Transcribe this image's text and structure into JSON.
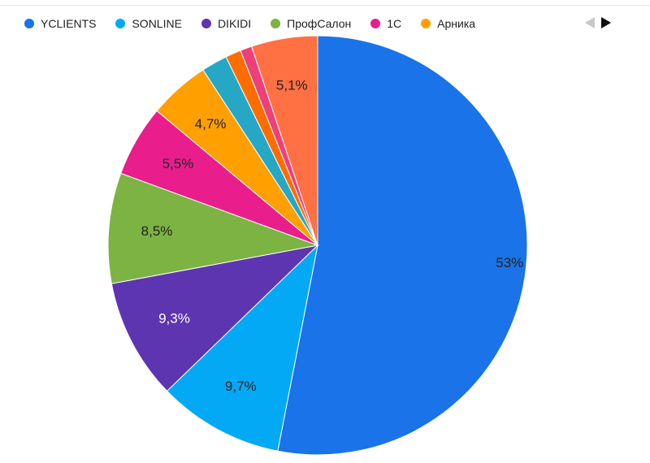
{
  "colors": {
    "YCLIENTS": "#1a73e8",
    "SONLINE": "#03a9f4",
    "DIKIDI": "#5e35b1",
    "ProfSalon": "#7cb342",
    "1C": "#e91e8c",
    "Arnika": "#ffa000",
    "other_teal": "#26a7c6",
    "other_orange": "#ff6d00",
    "other_pink": "#ec407a",
    "other_coral": "#ff7043"
  },
  "legend": {
    "items": [
      {
        "label": "YCLIENTS",
        "color": "#1a73e8"
      },
      {
        "label": "SONLINE",
        "color": "#03a9f4"
      },
      {
        "label": "DIKIDI",
        "color": "#5e35b1"
      },
      {
        "label": "ПрофСалон",
        "color": "#7cb342"
      },
      {
        "label": "1С",
        "color": "#e91e8c"
      },
      {
        "label": "Арника",
        "color": "#ffa000"
      }
    ]
  },
  "pager": {
    "prev_icon": "chevron-left-icon",
    "next_icon": "chevron-right-icon"
  },
  "chart_data": {
    "type": "pie",
    "start": "top",
    "direction": "clockwise",
    "slices": [
      {
        "name": "YCLIENTS",
        "value": 53,
        "label": "53%",
        "color": "#1a73e8",
        "label_color": "dark"
      },
      {
        "name": "SONLINE",
        "value": 9.7,
        "label": "9,7%",
        "color": "#03a9f4",
        "label_color": "dark"
      },
      {
        "name": "DIKIDI",
        "value": 9.3,
        "label": "9,3%",
        "color": "#5e35b1",
        "label_color": "light"
      },
      {
        "name": "ПрофСалон",
        "value": 8.5,
        "label": "8,5%",
        "color": "#7cb342",
        "label_color": "dark"
      },
      {
        "name": "1С",
        "value": 5.5,
        "label": "5,5%",
        "color": "#e91e8c",
        "label_color": "dark"
      },
      {
        "name": "Арника",
        "value": 4.7,
        "label": "4,7%",
        "color": "#ffa000",
        "label_color": "dark"
      },
      {
        "name": "",
        "value": 2.0,
        "label": "",
        "color": "#26a7c6",
        "label_color": "dark"
      },
      {
        "name": "",
        "value": 1.2,
        "label": "",
        "color": "#ff6d00",
        "label_color": "dark"
      },
      {
        "name": "",
        "value": 0.9,
        "label": "",
        "color": "#ec407a",
        "label_color": "dark"
      },
      {
        "name": "",
        "value": 5.1,
        "label": "5,1%",
        "color": "#ff7043",
        "label_color": "dark"
      }
    ]
  }
}
